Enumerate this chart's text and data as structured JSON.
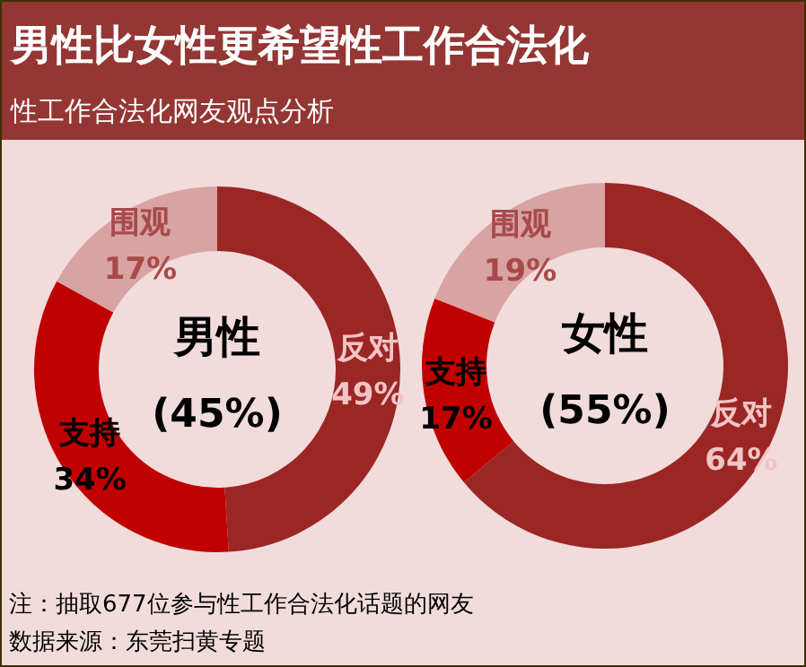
{
  "chart_data": [
    {
      "type": "donut",
      "title": "男性比女性更希望性工作合法化",
      "subtitle": "性工作合法化网友观点分析",
      "annotations": [
        "男性",
        "(45%)"
      ],
      "categories": [
        "反对",
        "支持",
        "围观"
      ],
      "values": [
        49,
        34,
        17
      ],
      "value_labels": [
        "49%",
        "34%",
        "17%"
      ],
      "colors": [
        "#9b2626",
        "#c00000",
        "#d9a3a3"
      ]
    },
    {
      "type": "donut",
      "annotations": [
        "女性",
        "(55%)",
        "注：抽取677位参与性工作合法化话题的网友",
        "数据来源：东莞扫黄专题"
      ],
      "categories": [
        "反对",
        "支持",
        "围观"
      ],
      "values": [
        64,
        17,
        19
      ],
      "value_labels": [
        "64%",
        "17%",
        "19%"
      ],
      "colors": [
        "#9b2626",
        "#c00000",
        "#d9a3a3"
      ]
    }
  ]
}
